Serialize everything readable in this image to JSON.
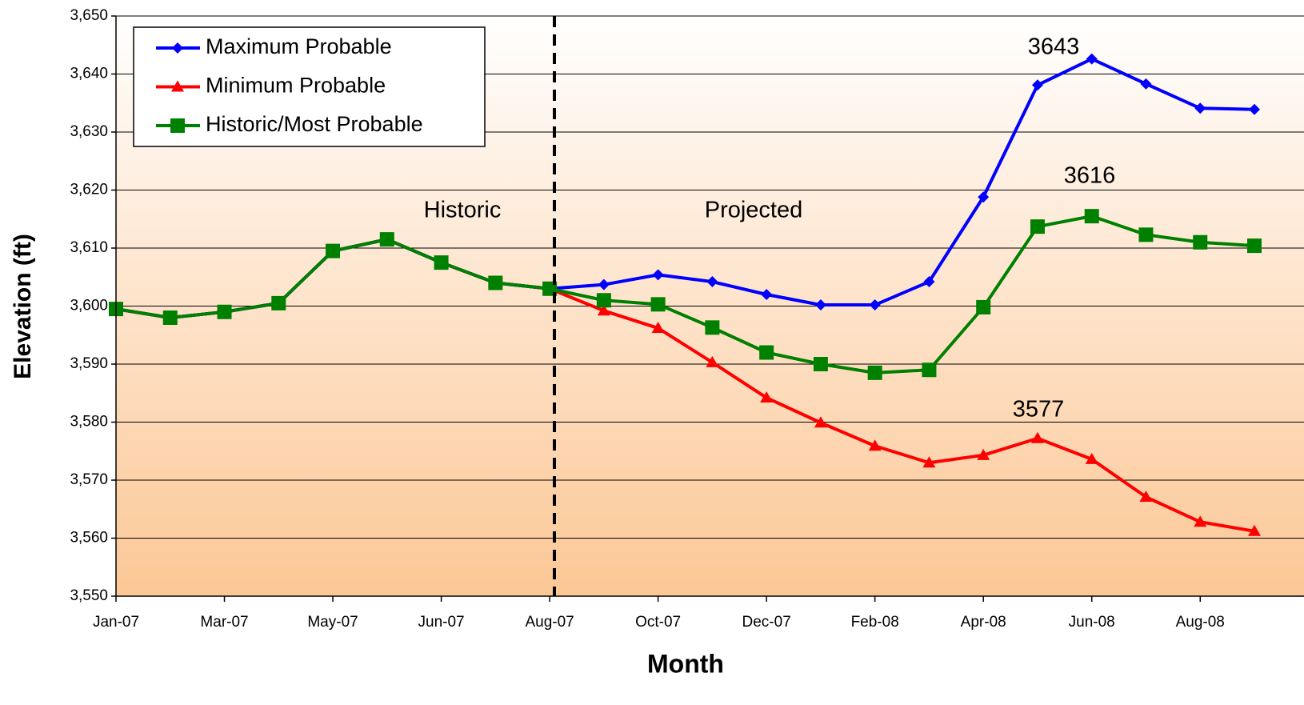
{
  "chart_data": {
    "type": "line",
    "y_label": "Elevation (ft)",
    "x_label": "Month",
    "categories": [
      "Jan-07",
      null,
      "Mar-07",
      null,
      "May-07",
      null,
      "Jun-07",
      null,
      "Aug-07",
      null,
      "Oct-07",
      null,
      "Dec-07",
      null,
      "Feb-08",
      null,
      "Apr-08",
      null,
      "Jun-08",
      null,
      "Aug-08",
      null
    ],
    "series": [
      {
        "name": "Maximum Probable",
        "color": "#0000ff",
        "marker": "diamond",
        "values": [
          3599.5,
          3598,
          3599,
          3600.5,
          3609.5,
          3611.5,
          3607.5,
          3604,
          3603,
          3603.7,
          3605.4,
          3604.2,
          3602,
          3600.2,
          3600.2,
          3604.2,
          3618.8,
          3638.1,
          3642.6,
          3638.3,
          3634.1,
          3633.9
        ]
      },
      {
        "name": "Minimum Probable",
        "color": "#ff0000",
        "marker": "triangle",
        "values": [
          3599.5,
          3598,
          3599,
          3600.5,
          3609.5,
          3611.5,
          3607.5,
          3604,
          3603,
          3599.2,
          3596.2,
          3590.3,
          3584.2,
          3579.9,
          3575.9,
          3573,
          3574.3,
          3577.2,
          3573.6,
          3567.1,
          3562.8,
          3561.2
        ]
      },
      {
        "name": "Historic/Most Probable",
        "color": "#008000",
        "marker": "square",
        "values": [
          3599.5,
          3598,
          3599,
          3600.5,
          3609.5,
          3611.5,
          3607.5,
          3604,
          3603,
          3601,
          3600.3,
          3596.3,
          3592,
          3590,
          3588.5,
          3589,
          3599.8,
          3613.7,
          3615.5,
          3612.3,
          3611,
          3610.4
        ]
      }
    ],
    "ylim": [
      3550,
      3650
    ],
    "yticks": [
      {
        "value": 3550,
        "label": "3,550"
      },
      {
        "value": 3560,
        "label": "3,560"
      },
      {
        "value": 3570,
        "label": "3,570"
      },
      {
        "value": 3580,
        "label": "3,580"
      },
      {
        "value": 3590,
        "label": "3,590"
      },
      {
        "value": 3600,
        "label": "3,600"
      },
      {
        "value": 3610,
        "label": "3,610"
      },
      {
        "value": 3620,
        "label": "3,620"
      },
      {
        "value": 3630,
        "label": "3,630"
      },
      {
        "value": 3640,
        "label": "3,640"
      },
      {
        "value": 3650,
        "label": "3,650"
      }
    ],
    "grid": true,
    "legend": "upper left",
    "annotations": [
      "3643",
      "3616",
      "3577",
      "Historic",
      "Projected"
    ]
  }
}
